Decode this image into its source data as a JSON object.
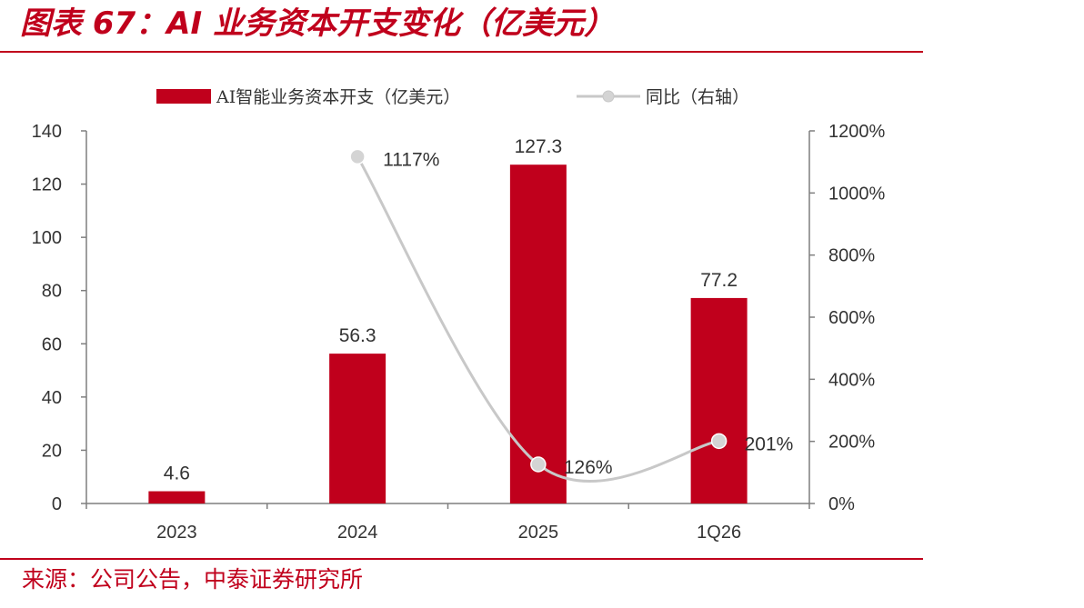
{
  "title": "图表 67：AI 业务资本开支变化（亿美元）",
  "source": "来源：公司公告，中泰证券研究所",
  "colors": {
    "brand": "#c0001c",
    "bar": "#c0001c",
    "line": "#c8c8c8",
    "marker": "#d4d4d4",
    "axis": "#7f7f7f",
    "text": "#333333"
  },
  "chart_data": {
    "type": "bar",
    "categories": [
      "2023",
      "2024",
      "2025",
      "1Q26"
    ],
    "series": [
      {
        "name": "AI智能业务资本开支（亿美元）",
        "type": "bar",
        "axis": "left",
        "values": [
          4.6,
          56.3,
          127.3,
          77.2
        ],
        "labels": [
          "4.6",
          "56.3",
          "127.3",
          "77.2"
        ]
      },
      {
        "name": "同比（右轴）",
        "type": "line",
        "axis": "right",
        "values": [
          null,
          1117,
          126,
          201
        ],
        "labels": [
          "",
          "1117%",
          "126%",
          "201%"
        ]
      }
    ],
    "y_left": {
      "range": [
        0,
        140
      ],
      "ticks": [
        "0",
        "20",
        "40",
        "60",
        "80",
        "100",
        "120",
        "140"
      ]
    },
    "y_right": {
      "range": [
        0,
        1200
      ],
      "ticks": [
        "0%",
        "200%",
        "400%",
        "600%",
        "800%",
        "1000%",
        "1200%"
      ]
    },
    "legend_position": "top",
    "grid": false
  }
}
